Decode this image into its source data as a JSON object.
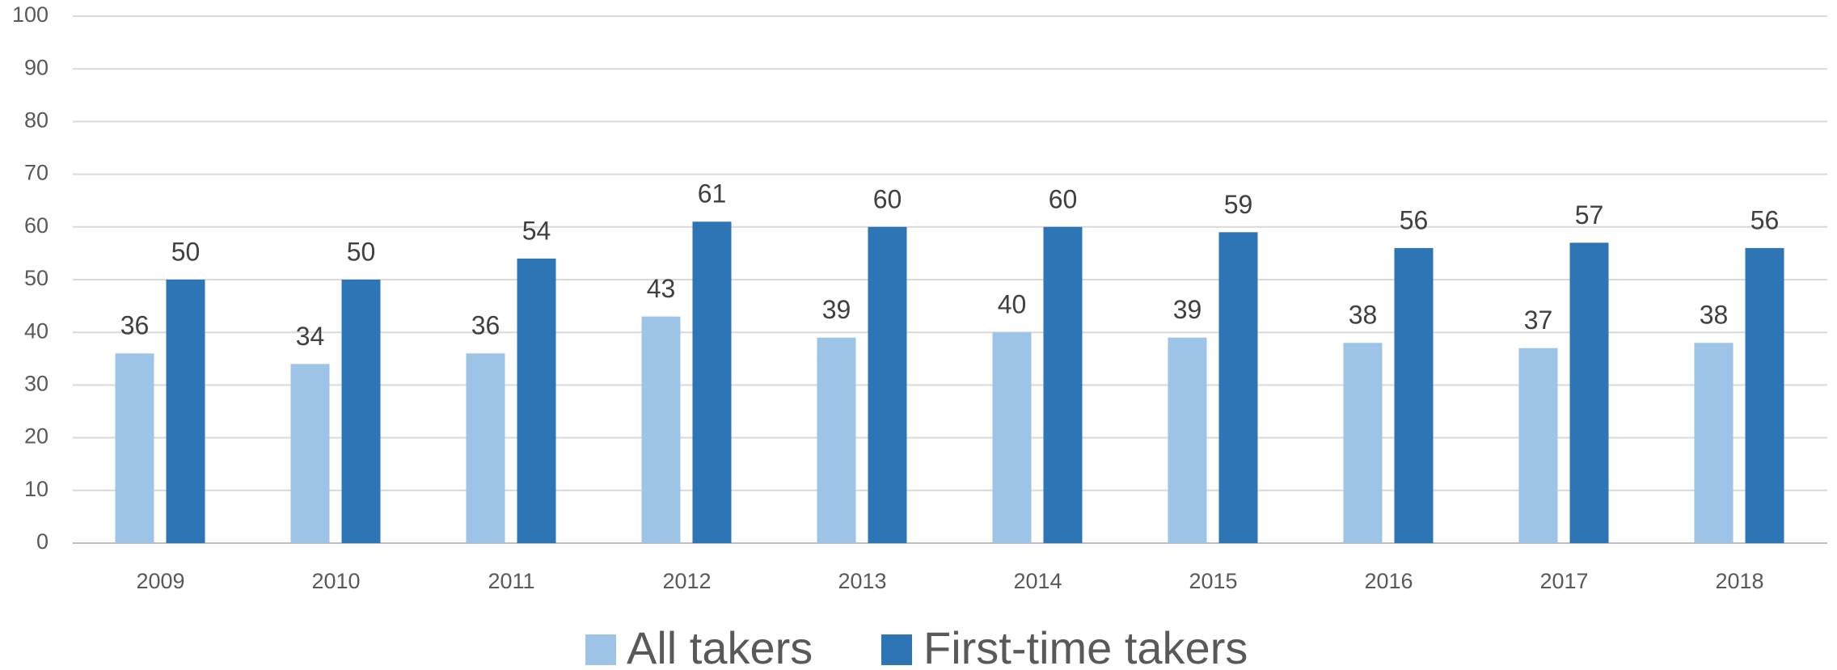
{
  "chart_data": {
    "type": "bar",
    "categories": [
      "2009",
      "2010",
      "2011",
      "2012",
      "2013",
      "2014",
      "2015",
      "2016",
      "2017",
      "2018"
    ],
    "series": [
      {
        "name": "All takers",
        "color": "#9dc3e6",
        "values": [
          36,
          34,
          36,
          43,
          39,
          40,
          39,
          38,
          37,
          38
        ]
      },
      {
        "name": "First-time takers",
        "color": "#2e75b6",
        "values": [
          50,
          50,
          54,
          61,
          60,
          60,
          59,
          56,
          57,
          56
        ]
      }
    ],
    "ylim": [
      0,
      100
    ],
    "yticks": [
      0,
      10,
      20,
      30,
      40,
      50,
      60,
      70,
      80,
      90,
      100
    ],
    "grid": true,
    "legend": "bottom"
  }
}
